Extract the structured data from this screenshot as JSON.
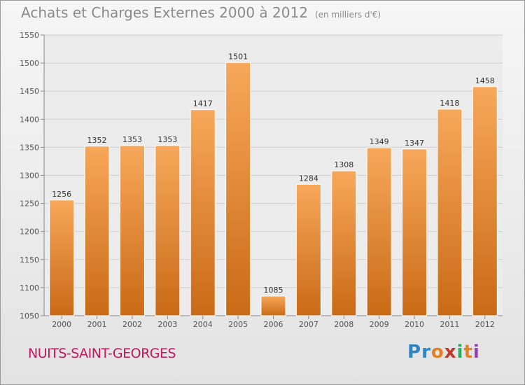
{
  "header": {
    "title": "Achats et Charges Externes 2000 à 2012",
    "subtitle": "(en milliers d'€)"
  },
  "footer": {
    "city": "NUITS-SAINT-GEORGES",
    "logo": [
      "P",
      "r",
      "o",
      "x",
      "i",
      "t",
      "i"
    ],
    "logo_colors": [
      "#2e86c1",
      "#2e86c1",
      "#e67e22",
      "#c0392b",
      "#27ae60",
      "#e67e22",
      "#8e44ad"
    ]
  },
  "colors": {
    "bar_top": "#f7a85a",
    "bar_bottom": "#c96a16",
    "grid": "#cfcfcf",
    "axis_text": "#555555"
  },
  "chart_data": {
    "type": "bar",
    "categories": [
      "2000",
      "2001",
      "2002",
      "2003",
      "2004",
      "2005",
      "2006",
      "2007",
      "2008",
      "2009",
      "2010",
      "2011",
      "2012"
    ],
    "values": [
      1256,
      1352,
      1353,
      1353,
      1417,
      1501,
      1085,
      1284,
      1308,
      1349,
      1347,
      1418,
      1458
    ],
    "ylim": [
      1050,
      1550
    ],
    "yticks": [
      1050,
      1100,
      1150,
      1200,
      1250,
      1300,
      1350,
      1400,
      1450,
      1500,
      1550
    ],
    "grid": true
  }
}
